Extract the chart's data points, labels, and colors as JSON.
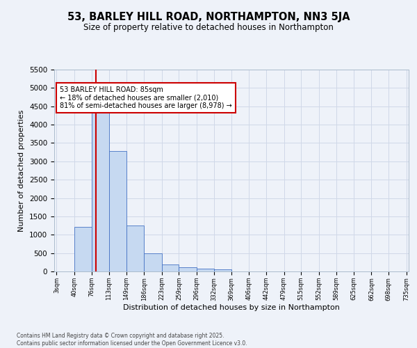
{
  "title": "53, BARLEY HILL ROAD, NORTHAMPTON, NN3 5JA",
  "subtitle": "Size of property relative to detached houses in Northampton",
  "xlabel": "Distribution of detached houses by size in Northampton",
  "ylabel": "Number of detached properties",
  "bin_edges": [
    3,
    40,
    76,
    113,
    149,
    186,
    223,
    259,
    296,
    332,
    369,
    406,
    442,
    479,
    515,
    552,
    589,
    625,
    662,
    698,
    735
  ],
  "bar_heights": [
    0,
    1220,
    4380,
    3280,
    1250,
    490,
    190,
    105,
    80,
    50,
    0,
    0,
    0,
    0,
    0,
    0,
    0,
    0,
    0,
    0
  ],
  "bar_color": "#c6d9f1",
  "bar_edge_color": "#4472c4",
  "grid_color": "#d0d8e8",
  "property_size": 85,
  "red_line_color": "#cc0000",
  "annotation_line1": "53 BARLEY HILL ROAD: 85sqm",
  "annotation_line2": "← 18% of detached houses are smaller (2,010)",
  "annotation_line3": "81% of semi-detached houses are larger (8,978) →",
  "annotation_box_color": "#ffffff",
  "annotation_border_color": "#cc0000",
  "ylim": [
    0,
    5500
  ],
  "yticks": [
    0,
    500,
    1000,
    1500,
    2000,
    2500,
    3000,
    3500,
    4000,
    4500,
    5000,
    5500
  ],
  "footer_line1": "Contains HM Land Registry data © Crown copyright and database right 2025.",
  "footer_line2": "Contains public sector information licensed under the Open Government Licence v3.0.",
  "background_color": "#eef2f9"
}
